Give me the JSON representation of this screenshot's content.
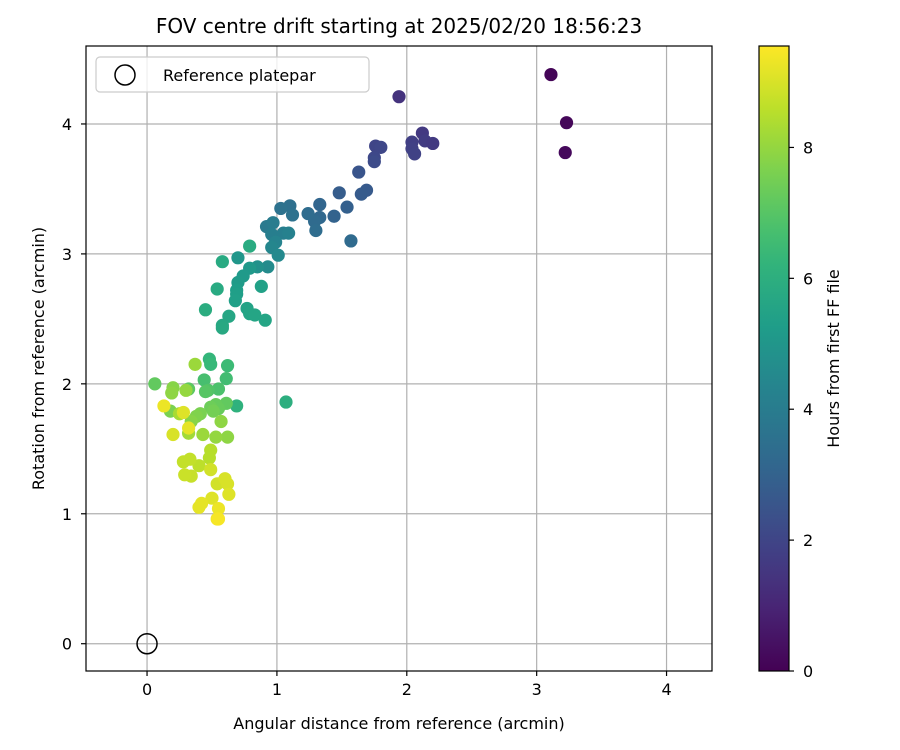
{
  "chart_data": {
    "type": "scatter",
    "title": "FOV centre drift starting at 2025/02/20 18:56:23",
    "xlabel": "Angular distance from reference (arcmin)",
    "ylabel": "Rotation from reference (arcmin)",
    "xlim": [
      -0.47,
      4.35
    ],
    "ylim": [
      -0.21,
      4.6
    ],
    "x_ticks": [
      0,
      1,
      2,
      3,
      4
    ],
    "y_ticks": [
      0,
      1,
      2,
      3,
      4
    ],
    "grid": true,
    "legend": {
      "position": "top-left",
      "entries": [
        "Reference platepar"
      ]
    },
    "reference_point": {
      "x": 0,
      "y": 0,
      "label": "Reference platepar"
    },
    "colorbar": {
      "label": "Hours from first FF file",
      "range": [
        0,
        9.55
      ],
      "ticks": [
        0,
        2,
        4,
        6,
        8
      ],
      "colormap": "viridis"
    },
    "points": [
      [
        3.11,
        4.38,
        0.1
      ],
      [
        3.23,
        4.01,
        0.15
      ],
      [
        3.22,
        3.78,
        0.2
      ],
      [
        1.94,
        4.21,
        1.4
      ],
      [
        2.12,
        3.93,
        1.6
      ],
      [
        2.14,
        3.87,
        1.7
      ],
      [
        2.2,
        3.85,
        1.65
      ],
      [
        2.04,
        3.86,
        1.8
      ],
      [
        2.04,
        3.81,
        1.85
      ],
      [
        2.06,
        3.77,
        1.9
      ],
      [
        1.76,
        3.83,
        2.0
      ],
      [
        1.8,
        3.82,
        2.05
      ],
      [
        1.75,
        3.74,
        2.1
      ],
      [
        1.75,
        3.71,
        2.2
      ],
      [
        1.63,
        3.63,
        2.5
      ],
      [
        1.69,
        3.49,
        2.7
      ],
      [
        1.65,
        3.46,
        2.75
      ],
      [
        1.48,
        3.47,
        2.8
      ],
      [
        1.54,
        3.36,
        2.9
      ],
      [
        1.44,
        3.29,
        3.0
      ],
      [
        1.33,
        3.38,
        3.1
      ],
      [
        1.33,
        3.28,
        3.2
      ],
      [
        1.29,
        3.25,
        3.3
      ],
      [
        1.3,
        3.18,
        3.4
      ],
      [
        1.24,
        3.31,
        3.35
      ],
      [
        1.1,
        3.37,
        3.5
      ],
      [
        1.12,
        3.3,
        3.6
      ],
      [
        1.03,
        3.35,
        3.6
      ],
      [
        1.57,
        3.1,
        3.3
      ],
      [
        0.92,
        3.21,
        3.9
      ],
      [
        0.97,
        3.24,
        4.0
      ],
      [
        0.96,
        3.15,
        4.1
      ],
      [
        1.05,
        3.16,
        4.1
      ],
      [
        1.09,
        3.16,
        4.2
      ],
      [
        0.99,
        3.09,
        4.3
      ],
      [
        0.96,
        3.05,
        4.4
      ],
      [
        1.01,
        2.99,
        4.5
      ],
      [
        0.93,
        2.9,
        4.6
      ],
      [
        0.85,
        2.9,
        4.8
      ],
      [
        0.7,
        2.97,
        5.0
      ],
      [
        0.79,
        2.89,
        5.1
      ],
      [
        0.74,
        2.83,
        5.15
      ],
      [
        0.7,
        2.78,
        5.2
      ],
      [
        0.69,
        2.72,
        5.3
      ],
      [
        0.69,
        2.69,
        5.35
      ],
      [
        0.68,
        2.64,
        5.4
      ],
      [
        0.88,
        2.75,
        5.45
      ],
      [
        0.77,
        2.58,
        5.5
      ],
      [
        0.79,
        2.54,
        5.55
      ],
      [
        0.83,
        2.53,
        5.6
      ],
      [
        0.91,
        2.49,
        5.6
      ],
      [
        0.63,
        2.52,
        5.65
      ],
      [
        0.58,
        2.45,
        5.7
      ],
      [
        0.58,
        2.43,
        5.75
      ],
      [
        0.54,
        2.73,
        5.8
      ],
      [
        0.58,
        2.94,
        5.8
      ],
      [
        0.79,
        3.06,
        5.85
      ],
      [
        0.45,
        2.57,
        5.9
      ],
      [
        1.07,
        1.86,
        6.0
      ],
      [
        0.69,
        1.83,
        6.1
      ],
      [
        0.48,
        2.19,
        6.3
      ],
      [
        0.49,
        2.15,
        6.4
      ],
      [
        0.62,
        2.14,
        6.5
      ],
      [
        0.61,
        2.04,
        6.6
      ],
      [
        0.44,
        2.03,
        6.7
      ],
      [
        0.55,
        1.96,
        6.8
      ],
      [
        0.47,
        1.95,
        6.9
      ],
      [
        0.45,
        1.94,
        7.0
      ],
      [
        0.32,
        1.96,
        7.1
      ],
      [
        0.06,
        2.0,
        7.2
      ],
      [
        0.61,
        1.85,
        7.2
      ],
      [
        0.53,
        1.84,
        7.3
      ],
      [
        0.55,
        1.81,
        7.3
      ],
      [
        0.49,
        1.82,
        7.4
      ],
      [
        0.51,
        1.79,
        7.5
      ],
      [
        0.41,
        1.77,
        7.6
      ],
      [
        0.38,
        1.75,
        7.7
      ],
      [
        0.18,
        1.79,
        7.6
      ],
      [
        0.2,
        1.97,
        7.8
      ],
      [
        0.19,
        1.93,
        7.9
      ],
      [
        0.34,
        1.71,
        7.8
      ],
      [
        0.57,
        1.71,
        7.9
      ],
      [
        0.62,
        1.59,
        7.9
      ],
      [
        0.53,
        1.59,
        8.0
      ],
      [
        0.43,
        1.61,
        8.1
      ],
      [
        0.32,
        1.62,
        8.2
      ],
      [
        0.3,
        1.95,
        8.0
      ],
      [
        0.37,
        2.15,
        8.1
      ],
      [
        0.25,
        1.77,
        8.3
      ],
      [
        0.49,
        1.49,
        8.5
      ],
      [
        0.48,
        1.43,
        8.5
      ],
      [
        0.4,
        1.37,
        8.6
      ],
      [
        0.33,
        1.42,
        8.7
      ],
      [
        0.28,
        1.4,
        8.7
      ],
      [
        0.34,
        1.29,
        8.75
      ],
      [
        0.29,
        1.3,
        8.8
      ],
      [
        0.49,
        1.34,
        8.9
      ],
      [
        0.54,
        1.23,
        8.9
      ],
      [
        0.6,
        1.27,
        9.0
      ],
      [
        0.62,
        1.23,
        9.0
      ],
      [
        0.63,
        1.15,
        9.1
      ],
      [
        0.5,
        1.12,
        9.1
      ],
      [
        0.42,
        1.08,
        9.2
      ],
      [
        0.4,
        1.05,
        9.2
      ],
      [
        0.55,
        1.04,
        9.3
      ],
      [
        0.54,
        0.96,
        9.4
      ],
      [
        0.55,
        0.96,
        9.45
      ],
      [
        0.2,
        1.61,
        9.0
      ],
      [
        0.32,
        1.66,
        9.2
      ],
      [
        0.13,
        1.83,
        9.3
      ],
      [
        0.28,
        1.78,
        9.1
      ]
    ]
  }
}
